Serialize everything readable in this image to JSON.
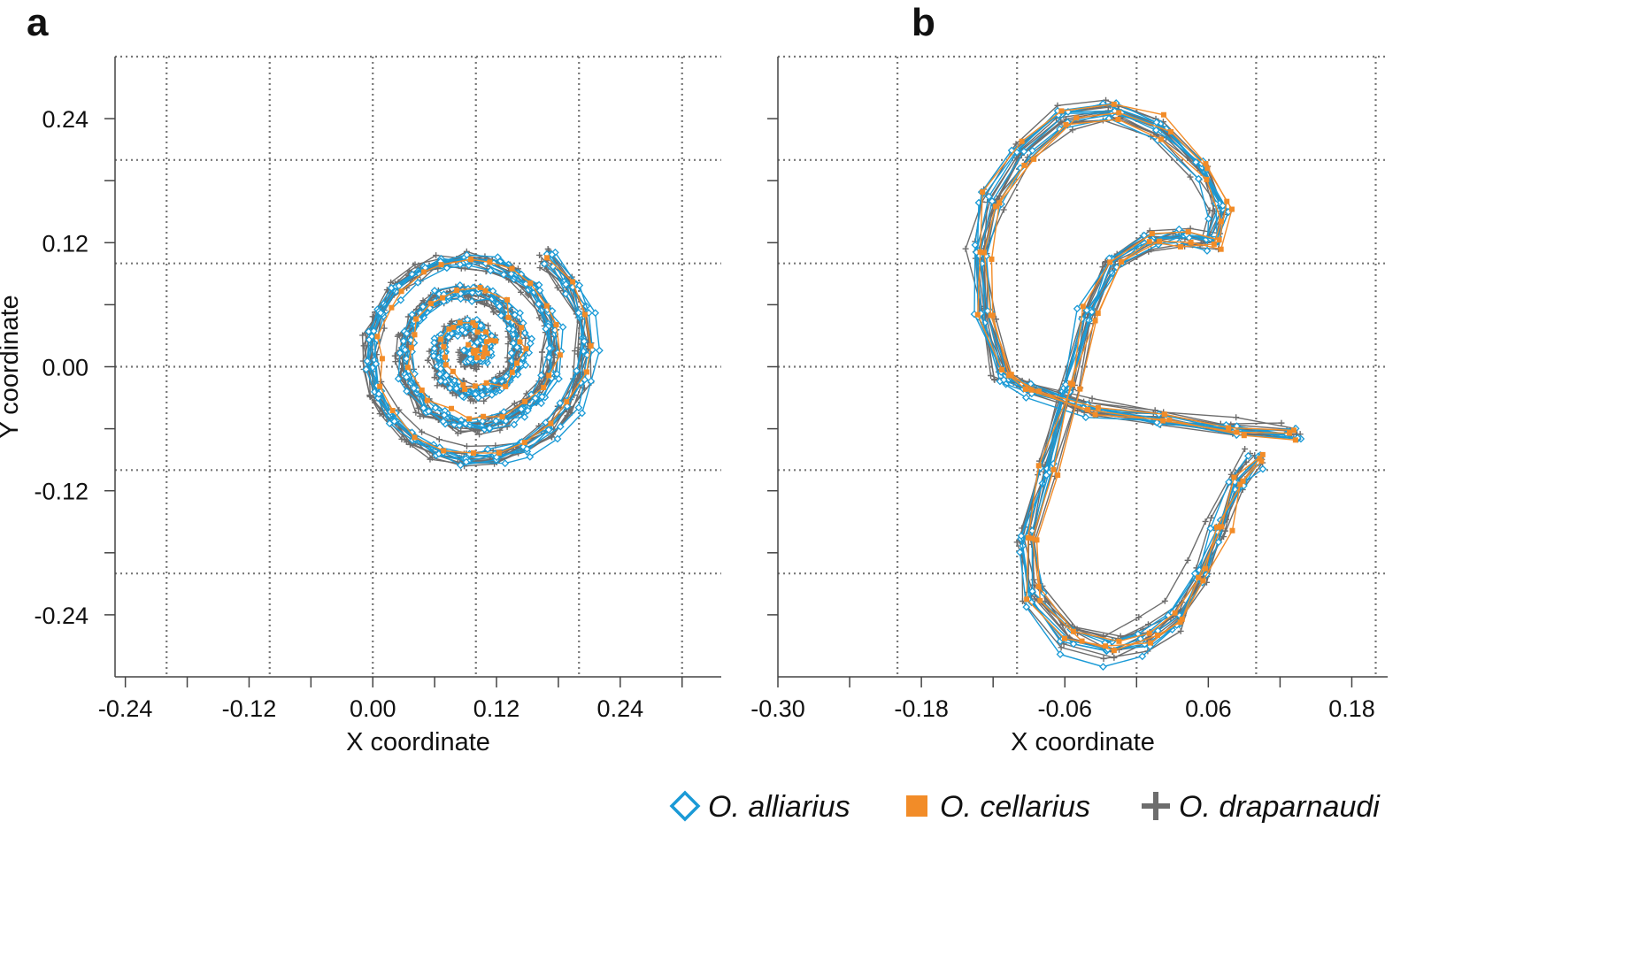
{
  "colors": {
    "alliarius": "#1a9ad6",
    "cellarius": "#f28c28",
    "draparnaudi": "#6d6d6d",
    "grid": "#777777",
    "axis": "#444444"
  },
  "legend": [
    {
      "name": "O. alliarius",
      "marker": "diamond-icon",
      "color": "#1a9ad6"
    },
    {
      "name": "O. cellarius",
      "marker": "square-icon",
      "color": "#f28c28"
    },
    {
      "name": "O. draparnaudi",
      "marker": "plus-icon",
      "color": "#6d6d6d"
    }
  ],
  "chart_data": [
    {
      "panel": "a",
      "type": "line",
      "xlabel": "X coordinate",
      "ylabel": "Y coordinate",
      "xlim": [
        -0.25,
        0.338
      ],
      "ylim": [
        -0.3,
        0.3
      ],
      "xticks": [
        -0.24,
        -0.12,
        0.0,
        0.12,
        0.24
      ],
      "xtick_labels": [
        "-0.24",
        "-0.12",
        "0.00",
        "0.12",
        "0.24"
      ],
      "yticks": [
        -0.24,
        -0.12,
        0.0,
        0.12,
        0.24
      ],
      "ytick_labels": [
        "-0.24",
        "-0.12",
        "0.00",
        "0.12",
        "0.24"
      ],
      "x_minor_ticks": [
        -0.24,
        -0.18,
        -0.12,
        -0.06,
        0.0,
        0.06,
        0.12,
        0.18,
        0.24,
        0.3
      ],
      "y_minor_ticks": [
        -0.24,
        -0.18,
        -0.12,
        -0.06,
        0.0,
        0.06,
        0.12,
        0.18,
        0.24
      ],
      "x_grid": [
        -0.2,
        -0.1,
        0.0,
        0.1,
        0.2,
        0.3
      ],
      "y_grid": [
        -0.2,
        -0.1,
        0.0,
        0.1,
        0.2,
        0.3
      ],
      "shape_params": {
        "kind": "spiral",
        "cx": 0.095,
        "cy": 0.015,
        "r0": 0.0,
        "r_growth": 0.0328,
        "theta_start": 0.5,
        "theta_end": 22.6,
        "steps": 80
      },
      "series": [
        {
          "name": "O. alliarius",
          "replicates": 6
        },
        {
          "name": "O. cellarius",
          "replicates": 1
        },
        {
          "name": "O. draparnaudi",
          "replicates": 10
        }
      ]
    },
    {
      "panel": "b",
      "type": "line",
      "xlabel": "X coordinate",
      "ylabel": "",
      "xlim": [
        -0.3,
        0.21
      ],
      "ylim": [
        -0.3,
        0.3
      ],
      "xticks": [
        -0.3,
        -0.18,
        -0.06,
        0.06,
        0.18
      ],
      "xtick_labels": [
        "-0.30",
        "-0.18",
        "-0.06",
        "0.06",
        "0.18"
      ],
      "yticks": [],
      "ytick_labels": [],
      "x_minor_ticks": [
        -0.3,
        -0.24,
        -0.18,
        -0.12,
        -0.06,
        0.0,
        0.06,
        0.12,
        0.18
      ],
      "y_minor_ticks": [
        -0.24,
        -0.18,
        -0.12,
        -0.06,
        0.0,
        0.06,
        0.12,
        0.18,
        0.24
      ],
      "x_grid": [
        -0.2,
        -0.1,
        0.0,
        0.1,
        0.2
      ],
      "y_grid": [
        -0.2,
        -0.1,
        0.0,
        0.1,
        0.2,
        0.3
      ],
      "shape_points": [
        [
          0.13,
          -0.065
        ],
        [
          0.08,
          -0.06
        ],
        [
          0.02,
          -0.05
        ],
        [
          -0.04,
          -0.04
        ],
        [
          -0.09,
          -0.02
        ],
        [
          -0.11,
          -0.01
        ],
        [
          -0.125,
          0.05
        ],
        [
          -0.13,
          0.11
        ],
        [
          -0.12,
          0.16
        ],
        [
          -0.095,
          0.205
        ],
        [
          -0.06,
          0.24
        ],
        [
          -0.02,
          0.245
        ],
        [
          0.02,
          0.23
        ],
        [
          0.055,
          0.19
        ],
        [
          0.07,
          0.15
        ],
        [
          0.065,
          0.12
        ],
        [
          0.04,
          0.125
        ],
        [
          0.01,
          0.12
        ],
        [
          -0.02,
          0.1
        ],
        [
          -0.04,
          0.05
        ],
        [
          -0.055,
          -0.02
        ],
        [
          -0.075,
          -0.1
        ],
        [
          -0.09,
          -0.165
        ],
        [
          -0.085,
          -0.22
        ],
        [
          -0.055,
          -0.26
        ],
        [
          -0.02,
          -0.27
        ],
        [
          0.01,
          -0.26
        ],
        [
          0.035,
          -0.24
        ],
        [
          0.055,
          -0.2
        ],
        [
          0.07,
          -0.155
        ],
        [
          0.085,
          -0.11
        ],
        [
          0.1,
          -0.09
        ]
      ],
      "series": [
        {
          "name": "O. alliarius",
          "replicates": 6
        },
        {
          "name": "O. cellarius",
          "replicates": 3
        },
        {
          "name": "O. draparnaudi",
          "replicates": 10
        }
      ]
    }
  ]
}
